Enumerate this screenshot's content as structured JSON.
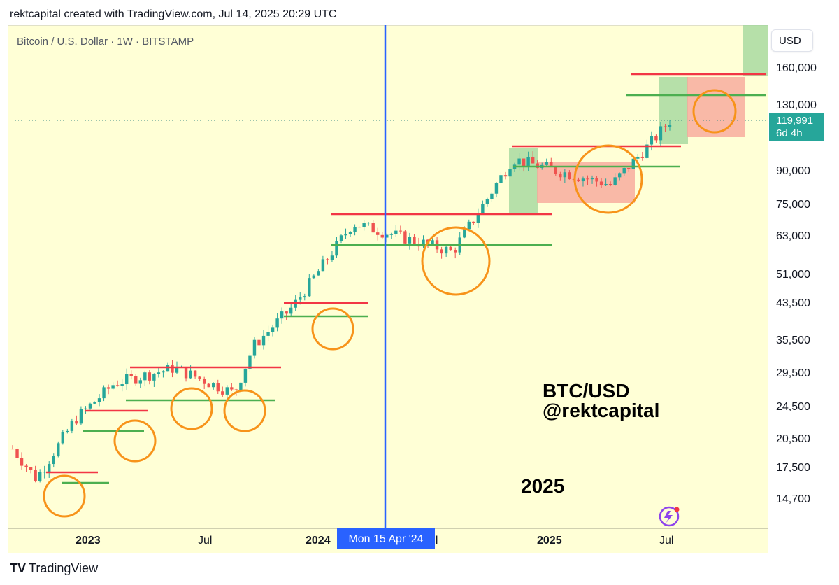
{
  "header": {
    "created_text": "rektcapital created with TradingView.com, Jul 14, 2025 20:29 UTC"
  },
  "symbol_label": "Bitcoin / U.S. Dollar · 1W · BITSTAMP",
  "currency_button": "USD",
  "overlay_text": {
    "line1": "BTC/USD",
    "line2": "@rektcapital",
    "year": "2025"
  },
  "branding": {
    "logo": "TV",
    "name": "TradingView"
  },
  "chart_data": {
    "type": "candlestick",
    "title": "Bitcoin / U.S. Dollar · 1W · BITSTAMP",
    "y_scale": "log",
    "y_ticks": [
      "160,000",
      "130,000",
      "90,000",
      "75,000",
      "63,000",
      "51,000",
      "43,500",
      "35,500",
      "29,500",
      "24,500",
      "20,500",
      "17,500",
      "14,700"
    ],
    "x_ticks": [
      {
        "label": "2023",
        "bold": true
      },
      {
        "label": "Jul",
        "bold": false
      },
      {
        "label": "2024",
        "bold": true
      },
      {
        "label": "Jul",
        "bold": false
      },
      {
        "label": "2025",
        "bold": true
      },
      {
        "label": "Jul",
        "bold": false
      }
    ],
    "last_price": {
      "value": "119,991",
      "countdown": "6d 4h"
    },
    "vertical_marker": {
      "date": "Mon 15 Apr '24"
    },
    "colors": {
      "up": "#26a69a",
      "down": "#ef5350",
      "resistance": "#f23645",
      "support": "#4caf50",
      "circle": "#f7931a",
      "marker": "#2962ff"
    },
    "close_series": [
      {
        "date": "2022-10",
        "close": 19500
      },
      {
        "date": "2022-11",
        "close": 16500
      },
      {
        "date": "2023-01",
        "close": 23000
      },
      {
        "date": "2023-03",
        "close": 28000
      },
      {
        "date": "2023-06",
        "close": 30500
      },
      {
        "date": "2023-09",
        "close": 26500
      },
      {
        "date": "2023-10",
        "close": 34500
      },
      {
        "date": "2023-12",
        "close": 43000
      },
      {
        "date": "2024-03",
        "close": 68000
      },
      {
        "date": "2024-08",
        "close": 58000
      },
      {
        "date": "2024-11",
        "close": 97000
      },
      {
        "date": "2025-04",
        "close": 84000
      },
      {
        "date": "2025-06",
        "close": 106000
      },
      {
        "date": "2025-07",
        "close": 119991
      }
    ],
    "resistance_levels": [
      17800,
      24000,
      31500,
      45000,
      72000,
      103000,
      155000
    ],
    "support_levels": [
      16400,
      21700,
      26500,
      41000,
      61000,
      93000,
      136000
    ]
  }
}
